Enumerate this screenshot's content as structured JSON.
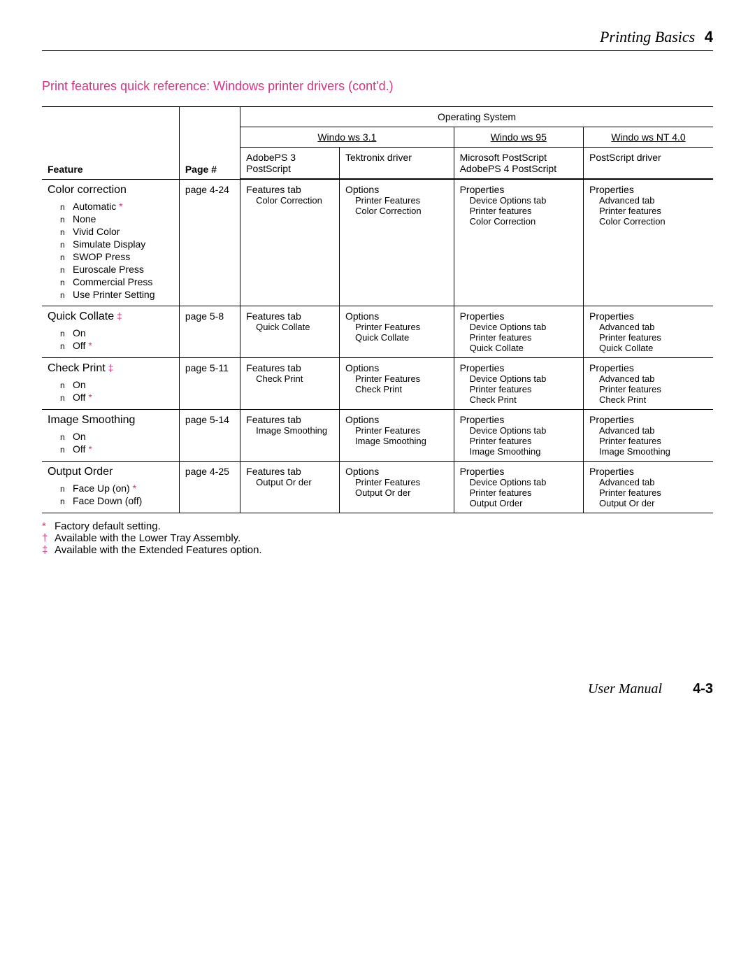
{
  "header": {
    "title": "Printing Basics",
    "chapter": "4"
  },
  "section_title": "Print features quick reference:  Windows printer drivers (cont'd.)",
  "columns": {
    "feature": "Feature",
    "page": "Page #",
    "os": "Operating System",
    "win31": "Windo ws 3.1",
    "win95": "Windo ws 95",
    "winnt": "Windo ws NT 4.0",
    "drv_win31a": "AdobePS 3 PostScript",
    "drv_win31b": "Tektronix driver",
    "drv_win95": "Microsoft PostScript AdobePS 4 PostScript",
    "drv_winnt": "PostScript driver"
  },
  "rows": [
    {
      "feature": "Color correction",
      "dagger": "",
      "page": "page 4-24",
      "options": [
        {
          "label": "Automatic",
          "star": true
        },
        {
          "label": "None",
          "star": false
        },
        {
          "label": "Vivid Color",
          "star": false
        },
        {
          "label": "Simulate Display",
          "star": false
        },
        {
          "label": "SWOP Press",
          "star": false
        },
        {
          "label": "Euroscale Press",
          "star": false
        },
        {
          "label": "Commercial Press",
          "star": false
        },
        {
          "label": "Use Printer Setting",
          "star": false
        }
      ],
      "w31a": [
        "Features tab",
        "Color Correction"
      ],
      "w31b": [
        "Options",
        "Printer Features",
        "Color Correction"
      ],
      "w95": [
        "Properties",
        "Device Options tab",
        "Printer features",
        "Color Correction"
      ],
      "wnt": [
        "Properties",
        "Advanced tab",
        "Printer features",
        "Color Correction"
      ]
    },
    {
      "feature": "Quick Collate",
      "dagger": "‡",
      "page": "page 5-8",
      "options": [
        {
          "label": "On",
          "star": false
        },
        {
          "label": "Off",
          "star": true
        }
      ],
      "w31a": [
        "Features tab",
        "Quick Collate"
      ],
      "w31b": [
        "Options",
        "Printer Features",
        "Quick Collate"
      ],
      "w95": [
        "Properties",
        "Device Options tab",
        "Printer features",
        "Quick Collate"
      ],
      "wnt": [
        "Properties",
        "Advanced tab",
        "Printer features",
        "Quick Collate"
      ]
    },
    {
      "feature": "Check Print",
      "dagger": "‡",
      "page": "page 5-11",
      "options": [
        {
          "label": "On",
          "star": false
        },
        {
          "label": "Off",
          "star": true
        }
      ],
      "w31a": [
        "Features tab",
        "Check Print"
      ],
      "w31b": [
        "Options",
        "Printer Features",
        "Check Print"
      ],
      "w95": [
        "Properties",
        "Device Options tab",
        "Printer features",
        "Check Print"
      ],
      "wnt": [
        "Properties",
        "Advanced tab",
        "Printer features",
        "Check Print"
      ]
    },
    {
      "feature": "Image Smoothing",
      "dagger": "",
      "page": "page 5-14",
      "options": [
        {
          "label": "On",
          "star": false
        },
        {
          "label": "Off",
          "star": true
        }
      ],
      "w31a": [
        "Features tab",
        "Image Smoothing"
      ],
      "w31b": [
        "Options",
        "Printer Features",
        "Image Smoothing"
      ],
      "w95": [
        "Properties",
        "Device Options tab",
        "Printer features",
        "Image Smoothing"
      ],
      "wnt": [
        "Properties",
        "Advanced tab",
        "Printer features",
        "Image Smoothing"
      ]
    },
    {
      "feature": "Output Order",
      "dagger": "",
      "page": "page 4-25",
      "options": [
        {
          "label": "Face Up (on)",
          "star": true
        },
        {
          "label": "Face Down (off)",
          "star": false
        }
      ],
      "w31a": [
        "Features tab",
        "Output Or der"
      ],
      "w31b": [
        "Options",
        "Printer Features",
        "Output Or der"
      ],
      "w95": [
        "Properties",
        "Device Options tab",
        "Printer features",
        "Output Order"
      ],
      "wnt": [
        "Properties",
        "Advanced tab",
        "Printer features",
        "Output Or der"
      ]
    }
  ],
  "footnotes": [
    {
      "sym": "*",
      "text": "Factory default setting."
    },
    {
      "sym": "†",
      "text": "Available with the Lower Tray Assembly."
    },
    {
      "sym": "‡",
      "text": "Available with the Extended Features option."
    }
  ],
  "footer": {
    "label": "User Manual",
    "page": "4-3"
  }
}
